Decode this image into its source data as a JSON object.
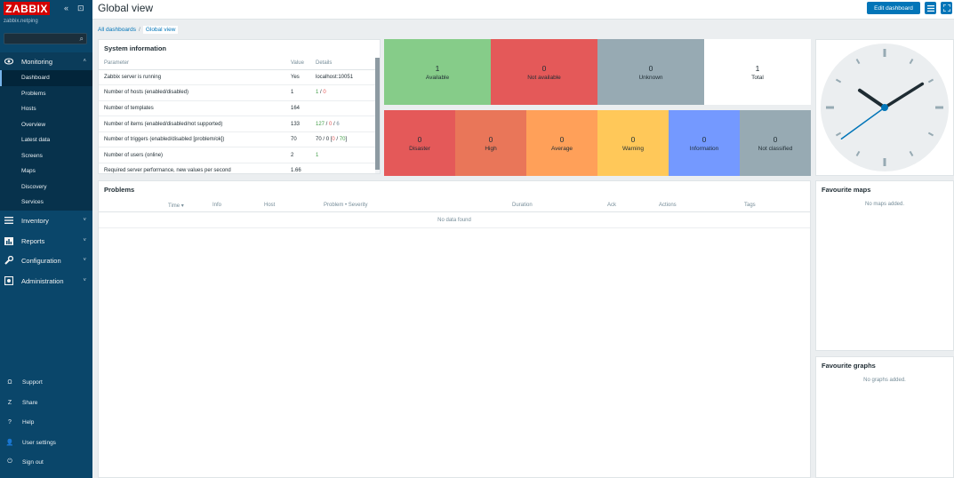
{
  "app": {
    "logo": "ZABBIX",
    "hostname": "zabbix.netping"
  },
  "sidebar": {
    "collapse_icon": "«",
    "kiosk_icon": "⊡",
    "sections": [
      {
        "label": "Monitoring"
      },
      {
        "label": "Inventory"
      },
      {
        "label": "Reports"
      },
      {
        "label": "Configuration"
      },
      {
        "label": "Administration"
      }
    ],
    "monitoring_items": [
      "Dashboard",
      "Problems",
      "Hosts",
      "Overview",
      "Latest data",
      "Screens",
      "Maps",
      "Discovery",
      "Services"
    ],
    "bottom": [
      {
        "label": "Support",
        "icon": "Ω"
      },
      {
        "label": "Share",
        "icon": "Z"
      },
      {
        "label": "Help",
        "icon": "?"
      },
      {
        "label": "User settings",
        "icon": "👤"
      },
      {
        "label": "Sign out",
        "icon": "⏻"
      }
    ]
  },
  "header": {
    "title": "Global view",
    "edit_label": "Edit dashboard"
  },
  "breadcrumb": {
    "root": "All dashboards",
    "current": "Global view"
  },
  "system_info": {
    "title": "System information",
    "columns": [
      "Parameter",
      "Value",
      "Details"
    ],
    "rows": [
      {
        "param": "Zabbix server is running",
        "value": "Yes",
        "details": "localhost:10051"
      },
      {
        "param": "Number of hosts (enabled/disabled)",
        "value": "1",
        "d1": "1",
        "d2": "0"
      },
      {
        "param": "Number of templates",
        "value": "164",
        "details": ""
      },
      {
        "param": "Number of items (enabled/disabled/not supported)",
        "value": "133",
        "d1": "127",
        "d2": "0",
        "d3": "6"
      },
      {
        "param": "Number of triggers (enabled/disabled [problem/ok])",
        "value": "70",
        "d1": "70",
        "d2": "0",
        "d3": "0",
        "d4": "70"
      },
      {
        "param": "Number of users (online)",
        "value": "2",
        "d1": "1"
      },
      {
        "param": "Required server performance, new values per second",
        "value": "1.66",
        "details": ""
      }
    ]
  },
  "host_availability": [
    {
      "label": "Available",
      "count": "1",
      "color": "#86cc89"
    },
    {
      "label": "Not available",
      "count": "0",
      "color": "#e45959"
    },
    {
      "label": "Unknown",
      "count": "0",
      "color": "#97aab3"
    },
    {
      "label": "Total",
      "count": "1",
      "color": "#ffffff"
    }
  ],
  "problems_by_severity": [
    {
      "label": "Disaster",
      "count": "0",
      "color": "#e45959"
    },
    {
      "label": "High",
      "count": "0",
      "color": "#e97659"
    },
    {
      "label": "Average",
      "count": "0",
      "color": "#ffa059"
    },
    {
      "label": "Warning",
      "count": "0",
      "color": "#ffc859"
    },
    {
      "label": "Information",
      "count": "0",
      "color": "#7499ff"
    },
    {
      "label": "Not classified",
      "count": "0",
      "color": "#97aab3"
    }
  ],
  "problems": {
    "title": "Problems",
    "columns": [
      "Time ▾",
      "Info",
      "Host",
      "Problem • Severity",
      "Duration",
      "Ack",
      "Actions",
      "Tags"
    ],
    "empty": "No data found"
  },
  "fav_maps": {
    "title": "Favourite maps",
    "empty": "No maps added."
  },
  "fav_graphs": {
    "title": "Favourite graphs",
    "empty": "No graphs added."
  },
  "clock": {
    "hour": 10,
    "minute": 9,
    "second": 39
  }
}
